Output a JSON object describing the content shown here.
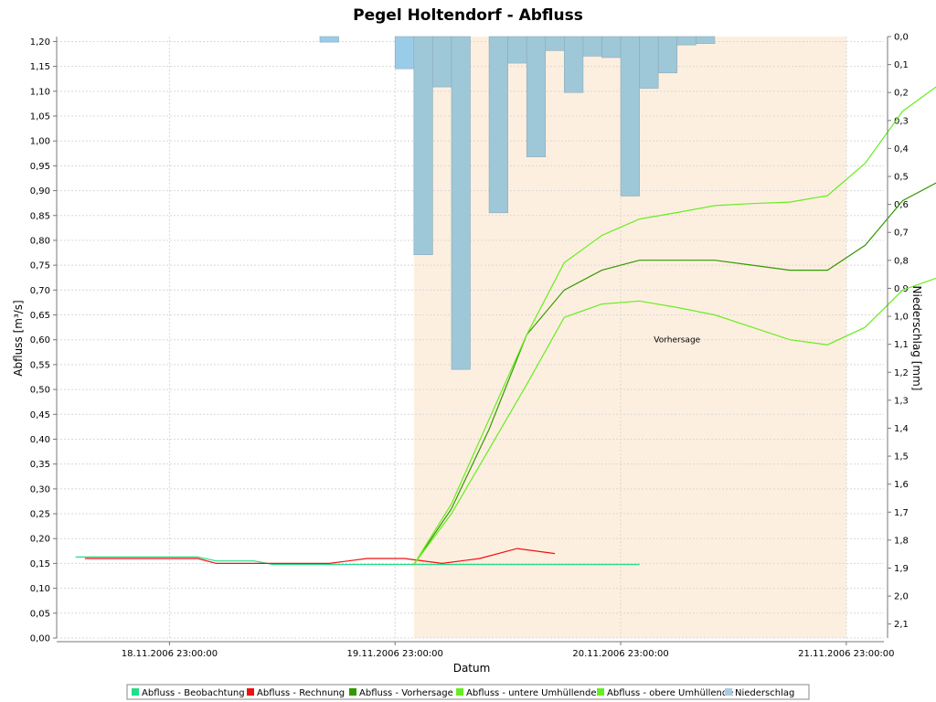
{
  "chart_data": {
    "type": "line",
    "title": "Pegel Holtendorf - Abfluss",
    "xlabel": "Datum",
    "ylabel": "Abfluss [m³/s]",
    "y2label": "Niederschlag [mm]",
    "annotation": "Vorhersage",
    "x_start": "18.11.2006 11:00:00",
    "x_end": "22.11.2006 03:00:00",
    "x_ticks": [
      "18.11.2006 23:00:00",
      "19.11.2006 23:00:00",
      "20.11.2006 23:00:00",
      "21.11.2006 23:00:00"
    ],
    "y_range": [
      0,
      1.21
    ],
    "y_ticks": [
      "0,00",
      "0,05",
      "0,10",
      "0,15",
      "0,20",
      "0,25",
      "0,30",
      "0,35",
      "0,40",
      "0,45",
      "0,50",
      "0,55",
      "0,60",
      "0,65",
      "0,70",
      "0,75",
      "0,80",
      "0,85",
      "0,90",
      "0,95",
      "1,00",
      "1,05",
      "1,10",
      "1,15",
      "1,20"
    ],
    "y2_range_inverted": [
      0.0,
      2.15
    ],
    "y2_ticks": [
      "0,0",
      "0,1",
      "0,2",
      "0,3",
      "0,4",
      "0,5",
      "0,6",
      "0,7",
      "0,8",
      "0,9",
      "1,0",
      "1,1",
      "1,2",
      "1,3",
      "1,4",
      "1,5",
      "1,6",
      "1,7",
      "1,8",
      "1,9",
      "2,0",
      "2,1"
    ],
    "forecast_period": [
      "20.11.2006 01:00:00",
      "21.11.2006 23:00:00"
    ],
    "grid": true,
    "legend_position": "bottom",
    "colors": {
      "beobachtung": "#22dd88",
      "rechnung": "#ee1111",
      "vorhersage": "#339900",
      "untere": "#66ee22",
      "obere": "#66ee22",
      "niederschlag_bar": "#9ec8d8",
      "niederschlag_bar_pre": "#99cce8",
      "niederschlag_legend": "#a8cce0",
      "forecast_bg": "#fdefdf"
    },
    "legend": [
      {
        "key": "beobachtung",
        "label": "Abfluss - Beobachtung"
      },
      {
        "key": "rechnung",
        "label": "Abfluss - Rechnung"
      },
      {
        "key": "vorhersage",
        "label": "Abfluss - Vorhersage"
      },
      {
        "key": "untere",
        "label": "Abfluss - untere Umhüllende"
      },
      {
        "key": "obere",
        "label": "Abfluss - obere Umhüllende"
      },
      {
        "key": "niederschlag_legend",
        "label": "Niederschlag"
      }
    ],
    "series": [
      {
        "key": "beobachtung",
        "kind": "line",
        "points": [
          [
            "18.11.2006 13:00",
            0.163
          ],
          [
            "18.11.2006 14:00",
            0.163
          ],
          [
            "18.11.2006 18:00",
            0.163
          ],
          [
            "18.11.2006 22:00",
            0.163
          ],
          [
            "19.11.2006 02:00",
            0.163
          ],
          [
            "19.11.2006 04:00",
            0.155
          ],
          [
            "19.11.2006 08:00",
            0.155
          ],
          [
            "19.11.2006 10:00",
            0.148
          ],
          [
            "19.11.2006 14:00",
            0.148
          ],
          [
            "19.11.2006 18:00",
            0.148
          ],
          [
            "19.11.2006 22:00",
            0.148
          ],
          [
            "20.11.2006 02:00",
            0.148
          ],
          [
            "20.11.2006 06:00",
            0.148
          ],
          [
            "20.11.2006 10:00",
            0.148
          ],
          [
            "20.11.2006 14:00",
            0.148
          ],
          [
            "20.11.2006 18:00",
            0.148
          ],
          [
            "20.11.2006 22:00",
            0.148
          ],
          [
            "21.11.2006 01:00",
            0.148
          ]
        ]
      },
      {
        "key": "rechnung",
        "kind": "line",
        "points": [
          [
            "18.11.2006 14:00",
            0.16
          ],
          [
            "18.11.2006 18:00",
            0.16
          ],
          [
            "18.11.2006 22:00",
            0.16
          ],
          [
            "19.11.2006 02:00",
            0.16
          ],
          [
            "19.11.2006 04:00",
            0.15
          ],
          [
            "19.11.2006 08:00",
            0.15
          ],
          [
            "19.11.2006 12:00",
            0.15
          ],
          [
            "19.11.2006 16:00",
            0.15
          ],
          [
            "19.11.2006 20:00",
            0.16
          ],
          [
            "20.11.2006 00:00",
            0.16
          ],
          [
            "20.11.2006 04:00",
            0.15
          ],
          [
            "20.11.2006 08:00",
            0.16
          ],
          [
            "20.11.2006 12:00",
            0.18
          ],
          [
            "20.11.2006 16:00",
            0.17
          ]
        ]
      },
      {
        "key": "vorhersage",
        "kind": "line",
        "points": [
          [
            "20.11.2006 01:00",
            0.148
          ],
          [
            "20.11.2006 05:00",
            0.26
          ],
          [
            "20.11.2006 09:00",
            0.42
          ],
          [
            "20.11.2006 13:00",
            0.61
          ],
          [
            "20.11.2006 17:00",
            0.7
          ],
          [
            "20.11.2006 21:00",
            0.74
          ],
          [
            "21.11.2006 01:00",
            0.76
          ],
          [
            "21.11.2006 05:00",
            0.76
          ],
          [
            "21.11.2006 09:00",
            0.76
          ],
          [
            "21.11.2006 13:00",
            0.75
          ],
          [
            "21.11.2006 17:00",
            0.74
          ],
          [
            "21.11.2006 21:00",
            0.74
          ],
          [
            "22.11.2006 01:00",
            0.79
          ],
          [
            "22.11.2006 05:00",
            0.88
          ],
          [
            "22.11.2006 09:00",
            0.92
          ],
          [
            "22.11.2006 13:00",
            0.93
          ],
          [
            "22.11.2006 17:00",
            0.92
          ],
          [
            "22.11.2006 21:00",
            0.92
          ]
        ]
      },
      {
        "key": "untere",
        "kind": "line",
        "points": [
          [
            "20.11.2006 01:00",
            0.148
          ],
          [
            "20.11.2006 05:00",
            0.25
          ],
          [
            "20.11.2006 09:00",
            0.38
          ],
          [
            "20.11.2006 13:00",
            0.51
          ],
          [
            "20.11.2006 17:00",
            0.645
          ],
          [
            "20.11.2006 21:00",
            0.672
          ],
          [
            "21.11.2006 01:00",
            0.678
          ],
          [
            "21.11.2006 05:00",
            0.665
          ],
          [
            "21.11.2006 09:00",
            0.65
          ],
          [
            "21.11.2006 13:00",
            0.625
          ],
          [
            "21.11.2006 17:00",
            0.6
          ],
          [
            "21.11.2006 21:00",
            0.59
          ],
          [
            "22.11.2006 01:00",
            0.625
          ],
          [
            "22.11.2006 05:00",
            0.7
          ],
          [
            "22.11.2006 09:00",
            0.727
          ],
          [
            "22.11.2006 13:00",
            0.723
          ],
          [
            "22.11.2006 17:00",
            0.7
          ],
          [
            "22.11.2006 21:00",
            0.685
          ]
        ]
      },
      {
        "key": "obere",
        "kind": "line",
        "points": [
          [
            "20.11.2006 01:00",
            0.148
          ],
          [
            "20.11.2006 05:00",
            0.27
          ],
          [
            "20.11.2006 09:00",
            0.44
          ],
          [
            "20.11.2006 13:00",
            0.61
          ],
          [
            "20.11.2006 17:00",
            0.755
          ],
          [
            "20.11.2006 21:00",
            0.81
          ],
          [
            "21.11.2006 01:00",
            0.843
          ],
          [
            "21.11.2006 05:00",
            0.856
          ],
          [
            "21.11.2006 09:00",
            0.87
          ],
          [
            "21.11.2006 13:00",
            0.874
          ],
          [
            "21.11.2006 17:00",
            0.877
          ],
          [
            "21.11.2006 21:00",
            0.89
          ],
          [
            "22.11.2006 01:00",
            0.955
          ],
          [
            "22.11.2006 05:00",
            1.06
          ],
          [
            "22.11.2006 09:00",
            1.115
          ],
          [
            "22.11.2006 13:00",
            1.135
          ],
          [
            "22.11.2006 17:00",
            1.14
          ],
          [
            "22.11.2006 21:00",
            1.155
          ]
        ]
      },
      {
        "key": "niederschlag",
        "kind": "bar",
        "axis": "right",
        "bars": [
          [
            "19.11.2006 15:00",
            "19.11.2006 17:00",
            0.02,
            "pre"
          ],
          [
            "19.11.2006 23:00",
            "20.11.2006 01:00",
            0.115,
            "pre"
          ],
          [
            "20.11.2006 01:00",
            "20.11.2006 03:00",
            0.78,
            "main"
          ],
          [
            "20.11.2006 03:00",
            "20.11.2006 05:00",
            0.18,
            "main"
          ],
          [
            "20.11.2006 05:00",
            "20.11.2006 07:00",
            1.19,
            "main"
          ],
          [
            "20.11.2006 09:00",
            "20.11.2006 11:00",
            0.63,
            "main"
          ],
          [
            "20.11.2006 11:00",
            "20.11.2006 13:00",
            0.095,
            "main"
          ],
          [
            "20.11.2006 13:00",
            "20.11.2006 15:00",
            0.43,
            "main"
          ],
          [
            "20.11.2006 15:00",
            "20.11.2006 17:00",
            0.05,
            "main"
          ],
          [
            "20.11.2006 17:00",
            "20.11.2006 19:00",
            0.2,
            "main"
          ],
          [
            "20.11.2006 19:00",
            "20.11.2006 21:00",
            0.07,
            "main"
          ],
          [
            "20.11.2006 21:00",
            "20.11.2006 23:00",
            0.075,
            "main"
          ],
          [
            "20.11.2006 23:00",
            "21.11.2006 01:00",
            0.57,
            "main"
          ],
          [
            "21.11.2006 01:00",
            "21.11.2006 03:00",
            0.185,
            "main"
          ],
          [
            "21.11.2006 03:00",
            "21.11.2006 05:00",
            0.13,
            "main"
          ],
          [
            "21.11.2006 05:00",
            "21.11.2006 07:00",
            0.03,
            "main"
          ],
          [
            "21.11.2006 07:00",
            "21.11.2006 09:00",
            0.025,
            "main"
          ]
        ]
      }
    ]
  }
}
